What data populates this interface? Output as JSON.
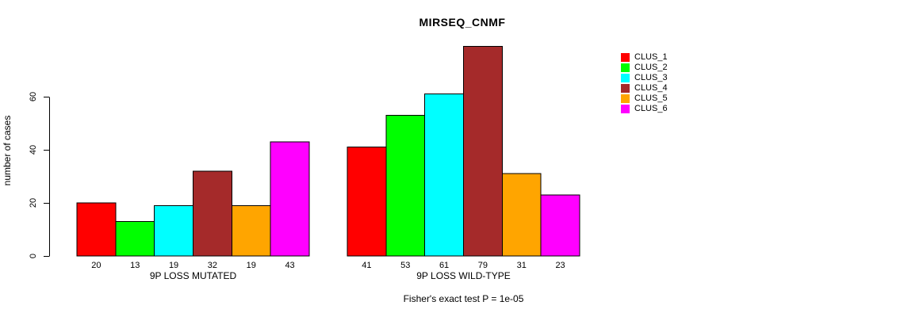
{
  "chart_data": {
    "type": "bar",
    "title": "MIRSEQ_CNMF",
    "ylabel": "number of cases",
    "yticks": [
      0,
      20,
      40,
      60
    ],
    "ylim": [
      0,
      79
    ],
    "grid": false,
    "legend_position": "right",
    "categories": [
      "CLUS_1",
      "CLUS_2",
      "CLUS_3",
      "CLUS_4",
      "CLUS_5",
      "CLUS_6"
    ],
    "colors": [
      "#FF0000",
      "#00FF00",
      "#00FFFF",
      "#A52A2A",
      "#FFA500",
      "#FF00FF"
    ],
    "groups": [
      {
        "label": "9P LOSS MUTATED",
        "values": [
          20,
          13,
          19,
          32,
          19,
          43
        ]
      },
      {
        "label": "9P LOSS WILD-TYPE",
        "values": [
          41,
          53,
          61,
          79,
          31,
          23
        ]
      }
    ],
    "bar_value_labels_shown": true,
    "annotation": "Fisher's exact test P = 1e-05"
  }
}
